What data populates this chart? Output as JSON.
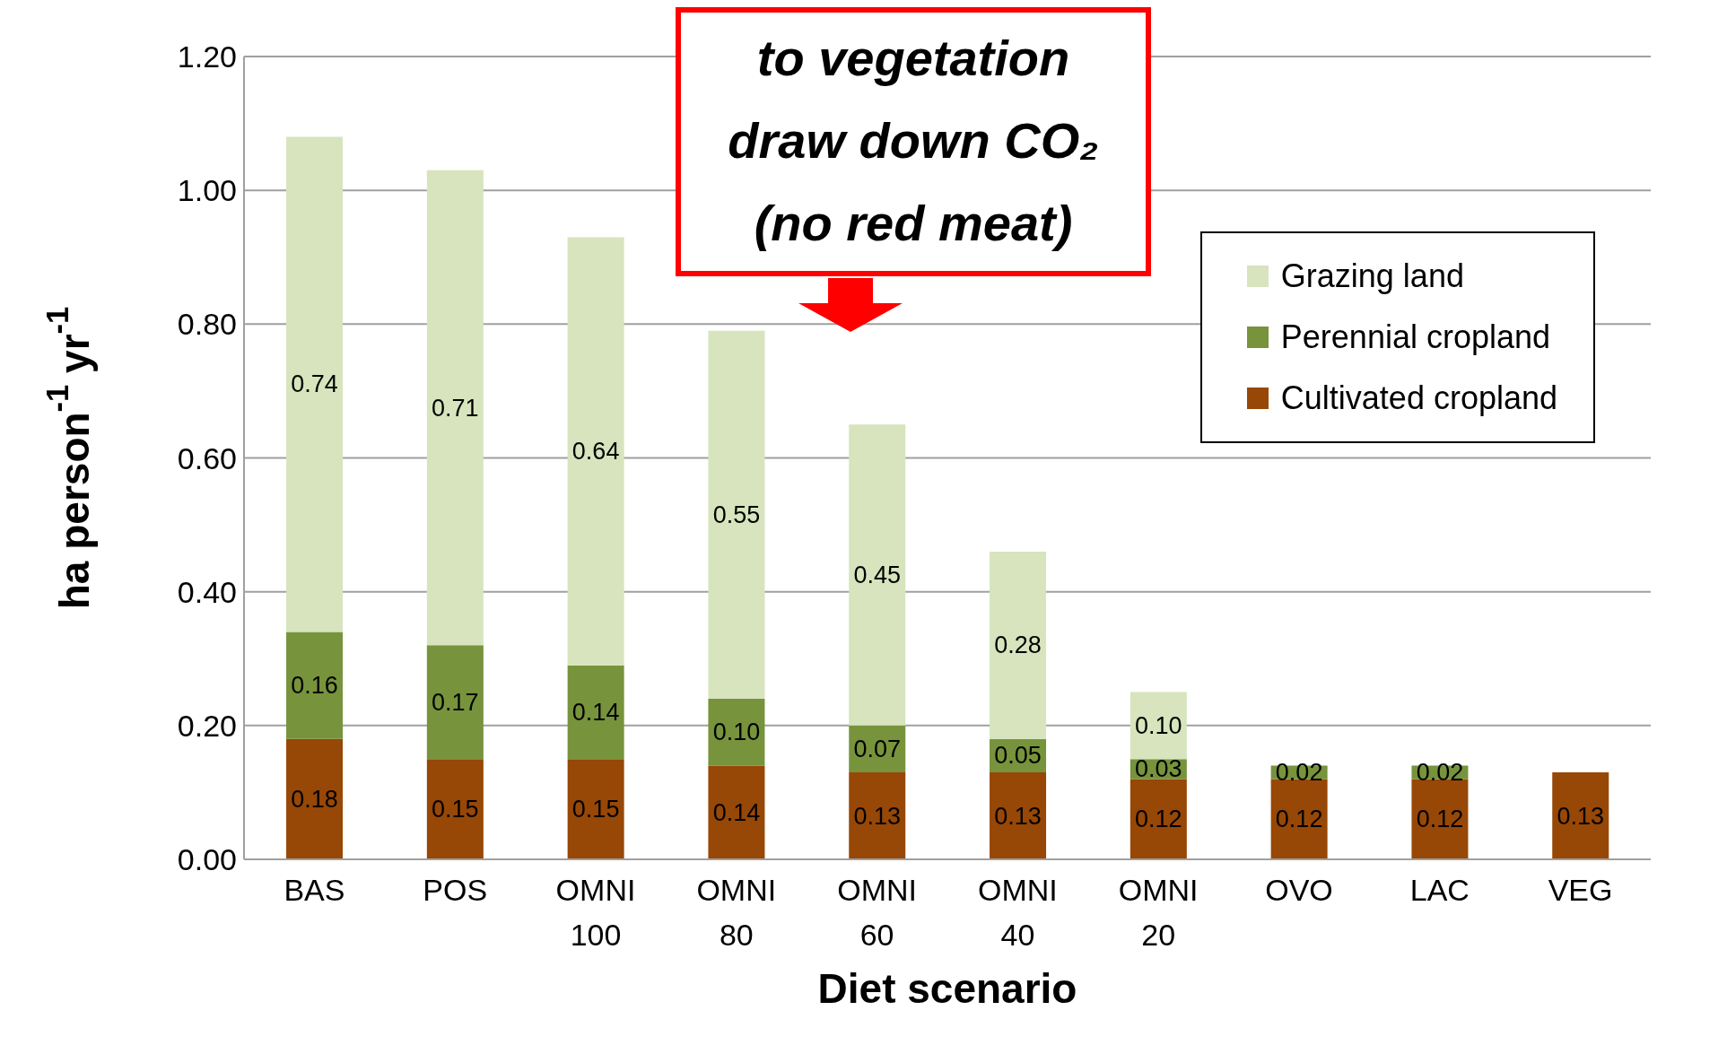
{
  "chart_data": {
    "type": "bar",
    "stacked": true,
    "xlabel": "Diet scenario",
    "ylabel": "ha person$^{-1}$ yr$^{-1}$",
    "categories": [
      "BAS",
      "POS",
      "OMNI 100",
      "OMNI 80",
      "OMNI 60",
      "OMNI 40",
      "OMNI 20",
      "OVO",
      "LAC",
      "VEG"
    ],
    "series": [
      {
        "name": "Cultivated cropland",
        "color": "#974706",
        "values": [
          0.18,
          0.15,
          0.15,
          0.14,
          0.13,
          0.13,
          0.12,
          0.12,
          0.12,
          0.13
        ],
        "value_labels": [
          "0.18",
          "0.15",
          "0.15",
          "0.14",
          "0.13",
          "0.13",
          "0.12",
          "0.12",
          "0.12",
          "0.13"
        ]
      },
      {
        "name": "Perennial cropland",
        "color": "#77933c",
        "values": [
          0.16,
          0.17,
          0.14,
          0.1,
          0.07,
          0.05,
          0.03,
          0.02,
          0.02,
          null
        ],
        "value_labels": [
          "0.16",
          "0.17",
          "0.14",
          "0.10",
          "0.07",
          "0.05",
          "0.03",
          "0.02",
          "0.02",
          null
        ]
      },
      {
        "name": "Grazing land",
        "color": "#d7e4bd",
        "values": [
          0.74,
          0.71,
          0.64,
          0.55,
          0.45,
          0.28,
          0.1,
          null,
          null,
          null
        ],
        "value_labels": [
          "0.74",
          "0.71",
          "0.64",
          "0.55",
          "0.45",
          "0.28",
          "0.10",
          null,
          null,
          null
        ]
      }
    ],
    "ylim": [
      0,
      1.2
    ],
    "yticks": [
      {
        "value": 0,
        "label": "0.00"
      },
      {
        "value": 0.2,
        "label": "0.20"
      },
      {
        "value": 0.4,
        "label": "0.40"
      },
      {
        "value": 0.6,
        "label": "0.60"
      },
      {
        "value": 0.8,
        "label": "0.80"
      },
      {
        "value": 1,
        "label": "1.00"
      },
      {
        "value": 1.2,
        "label": "1.20"
      }
    ],
    "grid": "y",
    "legend": "top right",
    "annotations": [
      "to vegetation",
      "draw down CO₂",
      "(no red meat)"
    ]
  }
}
